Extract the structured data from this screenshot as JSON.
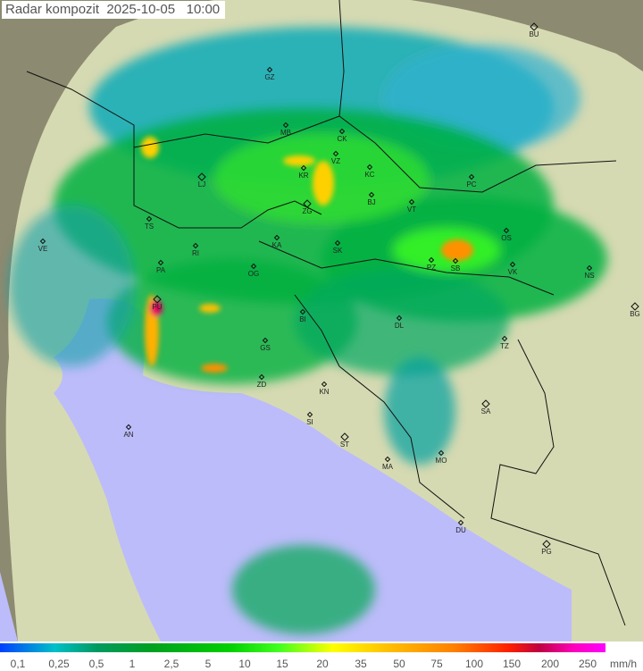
{
  "title": "Radar kompozit  2025-10-05   10:00",
  "legend": {
    "unit": "mm/h",
    "ticks": [
      "0,1",
      "0,25",
      "0,5",
      "1",
      "2,5",
      "5",
      "10",
      "15",
      "20",
      "35",
      "50",
      "75",
      "100",
      "150",
      "200",
      "250"
    ]
  },
  "cities": [
    "BU",
    "GZ",
    "MB",
    "CK",
    "VZ",
    "KR",
    "KC",
    "PC",
    "LJ",
    "ZG",
    "BJ",
    "VT",
    "TS",
    "VE",
    "RI",
    "KA",
    "SK",
    "OS",
    "PA",
    "OG",
    "PZ",
    "SB",
    "VK",
    "NS",
    "BG",
    "PU",
    "BI",
    "DL",
    "GS",
    "TZ",
    "ZD",
    "KN",
    "SI",
    "SA",
    "AN",
    "ST",
    "MO",
    "MA",
    "DU",
    "PG"
  ],
  "colors": {
    "sea": "#b8b8f8",
    "land": "#d8dcb0",
    "outside": "#8a8a6a",
    "light": "#0090c8",
    "moderate": "#00c000",
    "heavy": "#ffd000",
    "extreme": "#e00040"
  }
}
